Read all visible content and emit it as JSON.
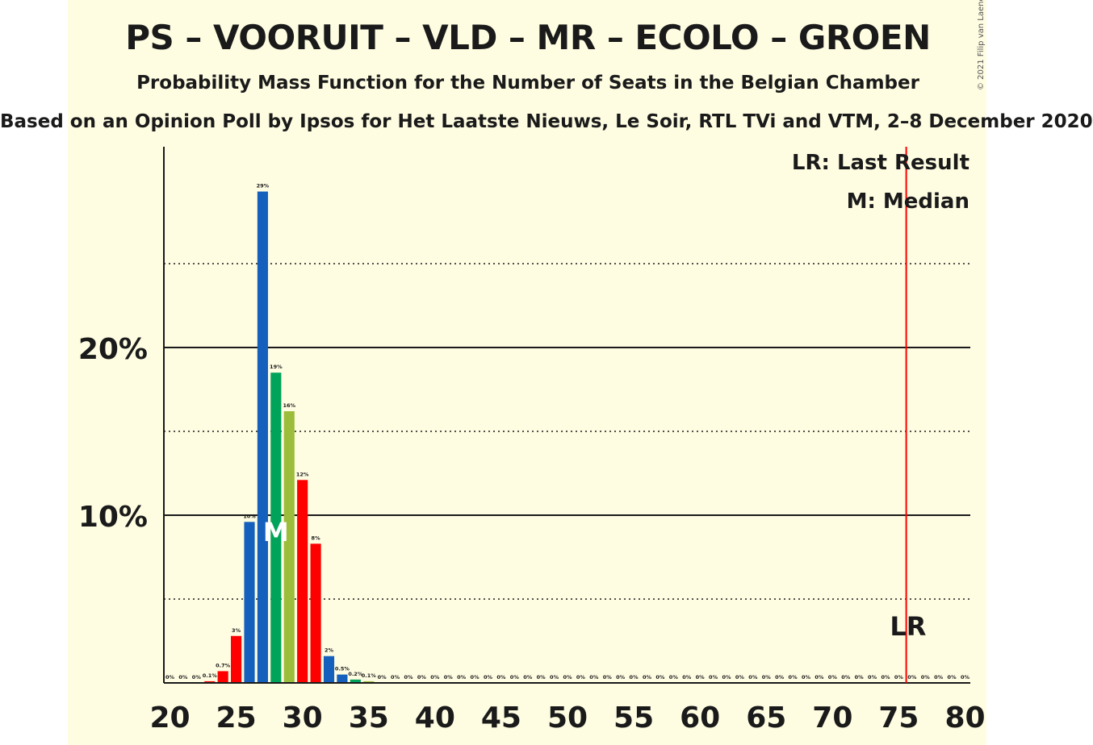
{
  "header": {
    "title": "PS – VOORUIT – VLD – MR – ECOLO – GROEN",
    "subtitle": "Probability Mass Function for the Number of Seats in the Belgian Chamber",
    "source": "Based on an Opinion Poll by Ipsos for Het Laatste Nieuws, Le Soir, RTL TVi and VTM, 2–8 December 2020",
    "copyright": "© 2021 Filip van Laenen"
  },
  "legend": {
    "last_result": "LR: Last Result",
    "median": "M: Median"
  },
  "markers": {
    "median_label": "M",
    "median_seat": 28,
    "last_result_label": "LR",
    "last_result_seat": 76
  },
  "colors": {
    "background": "#fefce1",
    "ps_red": "#ff0000",
    "vld_blue": "#1560bd",
    "groen_green": "#00a35a",
    "ecolo_green": "#9cbd3b",
    "lr_line": "#ff0000"
  },
  "chart_data": {
    "type": "bar",
    "x": [
      20,
      21,
      22,
      23,
      24,
      25,
      26,
      27,
      28,
      29,
      30,
      31,
      32,
      33,
      34,
      35,
      36,
      37,
      38,
      39,
      40,
      41,
      42,
      43,
      44,
      45,
      46,
      47,
      48,
      49,
      50,
      51,
      52,
      53,
      54,
      55,
      56,
      57,
      58,
      59,
      60,
      61,
      62,
      63,
      64,
      65,
      66,
      67,
      68,
      69,
      70,
      71,
      72,
      73,
      74,
      75,
      76,
      77,
      78,
      79,
      80
    ],
    "values": [
      0,
      0,
      0,
      0.1,
      0.7,
      2.8,
      9.6,
      29.3,
      18.5,
      16.2,
      12.1,
      8.3,
      1.6,
      0.5,
      0.2,
      0.1,
      0,
      0,
      0,
      0,
      0,
      0,
      0,
      0,
      0,
      0,
      0,
      0,
      0,
      0,
      0,
      0,
      0,
      0,
      0,
      0,
      0,
      0,
      0,
      0,
      0,
      0,
      0,
      0,
      0,
      0,
      0,
      0,
      0,
      0,
      0,
      0,
      0,
      0,
      0,
      0,
      0,
      0,
      0,
      0,
      0
    ],
    "data_labels": [
      "0%",
      "0%",
      "0%",
      "0.1%",
      "0.7%",
      "3%",
      "10%",
      "29%",
      "19%",
      "16%",
      "12%",
      "8%",
      "2%",
      "0.5%",
      "0.2%",
      "0.1%",
      "0%",
      "0%",
      "0%",
      "0%",
      "0%",
      "0%",
      "0%",
      "0%",
      "0%",
      "0%",
      "0%",
      "0%",
      "0%",
      "0%",
      "0%",
      "0%",
      "0%",
      "0%",
      "0%",
      "0%",
      "0%",
      "0%",
      "0%",
      "0%",
      "0%",
      "0%",
      "0%",
      "0%",
      "0%",
      "0%",
      "0%",
      "0%",
      "0%",
      "0%",
      "0%",
      "0%",
      "0%",
      "0%",
      "0%",
      "0%",
      "0%",
      "0%",
      "0%",
      "0%",
      "0%"
    ],
    "bar_colors": [
      "#ff0000",
      "#ff0000",
      "#ff0000",
      "#ff0000",
      "#ff0000",
      "#ff0000",
      "#1560bd",
      "#1560bd",
      "#00a35a",
      "#9cbd3b",
      "#ff0000",
      "#ff0000",
      "#1560bd",
      "#1560bd",
      "#00a35a",
      "#9cbd3b",
      "#ff0000",
      "#ff0000",
      "#ff0000",
      "#ff0000",
      "#ff0000",
      "#ff0000",
      "#ff0000",
      "#ff0000",
      "#ff0000",
      "#ff0000",
      "#ff0000",
      "#ff0000",
      "#ff0000",
      "#ff0000",
      "#ff0000",
      "#ff0000",
      "#ff0000",
      "#ff0000",
      "#ff0000",
      "#ff0000",
      "#ff0000",
      "#ff0000",
      "#ff0000",
      "#ff0000",
      "#ff0000",
      "#ff0000",
      "#ff0000",
      "#ff0000",
      "#ff0000",
      "#ff0000",
      "#ff0000",
      "#ff0000",
      "#ff0000",
      "#ff0000",
      "#ff0000",
      "#ff0000",
      "#ff0000",
      "#ff0000",
      "#ff0000",
      "#ff0000",
      "#ff0000",
      "#ff0000",
      "#ff0000",
      "#ff0000",
      "#ff0000"
    ],
    "x_ticks": [
      20,
      25,
      30,
      35,
      40,
      45,
      50,
      55,
      60,
      65,
      70,
      75,
      80
    ],
    "y_ticks": [
      {
        "value": 10,
        "label": "10%"
      },
      {
        "value": 20,
        "label": "20%"
      }
    ],
    "y_minor_gridlines": [
      5,
      15,
      25
    ],
    "xlim": [
      20,
      80
    ],
    "ylim": [
      0,
      32
    ],
    "grid": true,
    "legend_position": "top-right"
  }
}
